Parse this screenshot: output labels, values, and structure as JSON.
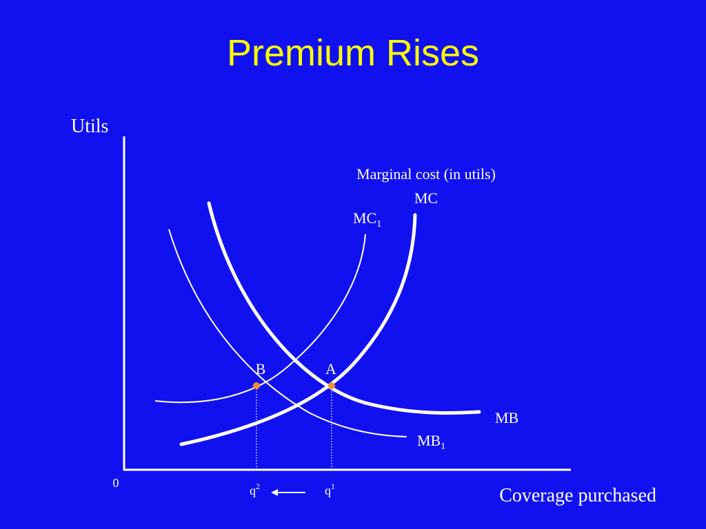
{
  "title": "Premium Rises",
  "y_axis_label": "Utils",
  "x_axis_label": "Coverage purchased",
  "origin_label": "0",
  "mc_caption": "Marginal cost (in utils)",
  "curves": {
    "mc": {
      "text": "MC"
    },
    "mc1": {
      "text": "MC",
      "subscript": "1"
    },
    "mb": {
      "text": "MB"
    },
    "mb1": {
      "text": "MB",
      "subscript": "1"
    }
  },
  "points": {
    "a": "A",
    "b": "B"
  },
  "quantities": {
    "q1": {
      "text": "q",
      "superscript": "1"
    },
    "q2": {
      "text": "q",
      "superscript": "2"
    }
  }
}
